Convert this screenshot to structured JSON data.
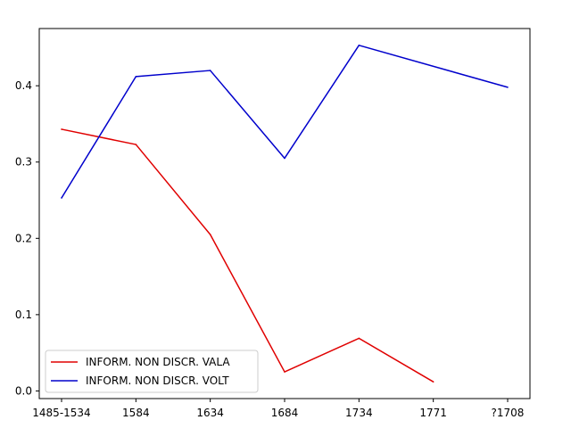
{
  "chart_data": {
    "type": "line",
    "title": "",
    "xlabel": "",
    "ylabel": "",
    "categories": [
      "1485-1534",
      "1584",
      "1634",
      "1684",
      "1734",
      "1771",
      "?1708"
    ],
    "ylim": [
      -0.01,
      0.475
    ],
    "yticks": [
      0.0,
      0.1,
      0.2,
      0.3,
      0.4
    ],
    "ytick_labels": [
      "0.0",
      "0.1",
      "0.2",
      "0.3",
      "0.4"
    ],
    "grid": false,
    "legend": "lower-left",
    "series": [
      {
        "name": "INFORM. NON DISCR. VALA",
        "color": "#e00000",
        "values": [
          0.343,
          0.323,
          0.205,
          0.025,
          0.069,
          0.012,
          null
        ]
      },
      {
        "name": "INFORM. NON DISCR. VOLT",
        "color": "#0000cc",
        "values": [
          0.253,
          0.412,
          0.42,
          0.305,
          0.453,
          null,
          0.398
        ]
      }
    ]
  }
}
